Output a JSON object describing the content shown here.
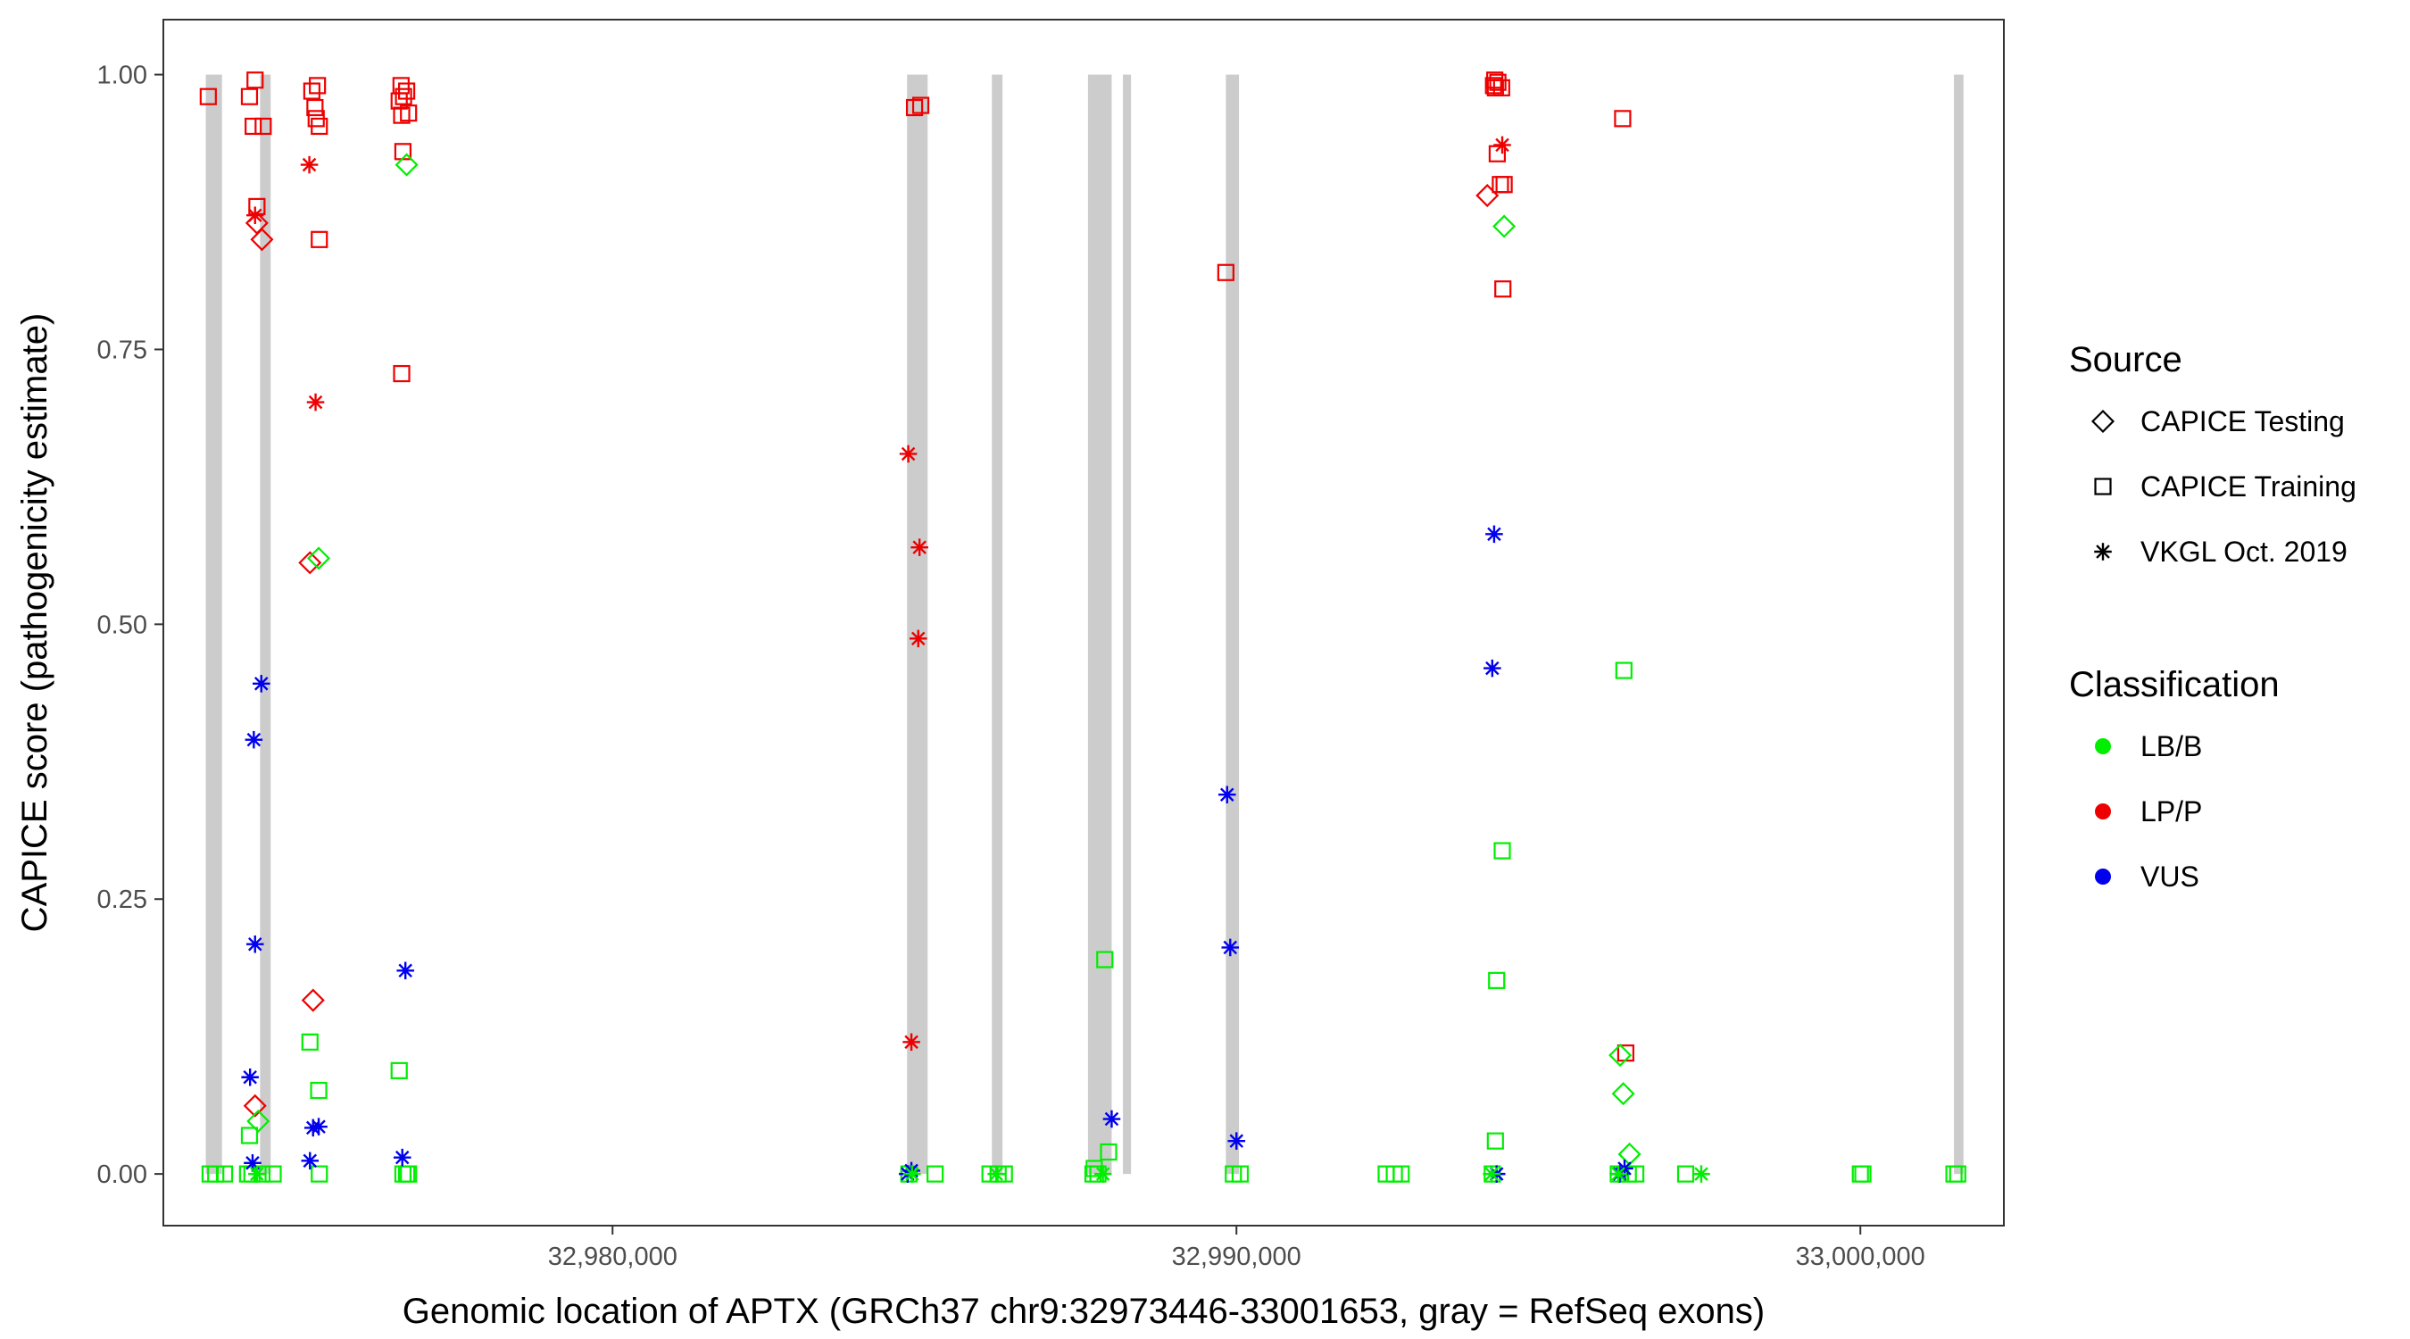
{
  "chart_data": {
    "type": "scatter",
    "xlabel": "Genomic location of APTX (GRCh37 chr9:32973446-33001653, gray = RefSeq exons)",
    "ylabel": "CAPICE score (pathogenicity estimate)",
    "xlim": [
      32972800,
      33002300
    ],
    "ylim": [
      -0.047,
      1.05
    ],
    "x_ticks": [
      32980000,
      32990000,
      33000000
    ],
    "x_tick_labels": [
      "32,980,000",
      "32,990,000",
      "33,000,000"
    ],
    "y_ticks": [
      0,
      0.25,
      0.5,
      0.75,
      1.0
    ],
    "y_tick_labels": [
      "0.00",
      "0.25",
      "0.50",
      "0.75",
      "1.00"
    ],
    "grid": false,
    "exons": [
      [
        32973480,
        32973740
      ],
      [
        32974350,
        32974520
      ],
      [
        32984720,
        32985050
      ],
      [
        32986080,
        32986250
      ],
      [
        32987620,
        32988000
      ],
      [
        32988180,
        32988310
      ],
      [
        32989830,
        32990040
      ],
      [
        33001500,
        33001653
      ]
    ],
    "colors": {
      "LB/B": "#00ee00",
      "LP/P": "#ee0000",
      "VUS": "#0000ee",
      "exon": "#cccccc"
    },
    "legend": {
      "source_title": "Source",
      "source_items": [
        {
          "label": "CAPICE Testing",
          "shape": "diamond"
        },
        {
          "label": "CAPICE Training",
          "shape": "square"
        },
        {
          "label": "VKGL Oct. 2019",
          "shape": "asterisk"
        }
      ],
      "class_title": "Classification",
      "class_items": [
        {
          "label": "LB/B",
          "color": "#00ee00"
        },
        {
          "label": "LP/P",
          "color": "#ee0000"
        },
        {
          "label": "VUS",
          "color": "#0000ee"
        }
      ],
      "position": "right"
    },
    "series": [
      {
        "name": "CAPICE Training LP/P",
        "shape": "square",
        "color": "#ee0000",
        "points": [
          [
            32973520,
            0.98
          ],
          [
            32974180,
            0.98
          ],
          [
            32974270,
            0.995
          ],
          [
            32974240,
            0.953
          ],
          [
            32974400,
            0.953
          ],
          [
            32974300,
            0.88
          ],
          [
            32975180,
            0.985
          ],
          [
            32975270,
            0.99
          ],
          [
            32975230,
            0.97
          ],
          [
            32975250,
            0.96
          ],
          [
            32975300,
            0.953
          ],
          [
            32975300,
            0.85
          ],
          [
            32976610,
            0.99
          ],
          [
            32976700,
            0.985
          ],
          [
            32976650,
            0.98
          ],
          [
            32976580,
            0.976
          ],
          [
            32976730,
            0.965
          ],
          [
            32976620,
            0.963
          ],
          [
            32976640,
            0.93
          ],
          [
            32976620,
            0.728
          ],
          [
            32984840,
            0.97
          ],
          [
            32984940,
            0.972
          ],
          [
            32989830,
            0.82
          ],
          [
            32994140,
            0.995
          ],
          [
            32994190,
            0.993
          ],
          [
            32994120,
            0.99
          ],
          [
            32994150,
            0.988
          ],
          [
            32994250,
            0.988
          ],
          [
            32994180,
            0.928
          ],
          [
            32994230,
            0.9
          ],
          [
            32994290,
            0.9
          ],
          [
            32994270,
            0.805
          ],
          [
            32996190,
            0.96
          ],
          [
            32996240,
            0.11
          ]
        ]
      },
      {
        "name": "CAPICE Training LB/B",
        "shape": "square",
        "color": "#00ee00",
        "points": [
          [
            32973550,
            0.0
          ],
          [
            32973640,
            0.0
          ],
          [
            32973780,
            0.0
          ],
          [
            32974150,
            0.0
          ],
          [
            32974220,
            0.0
          ],
          [
            32974380,
            0.0
          ],
          [
            32974560,
            0.0
          ],
          [
            32974180,
            0.035
          ],
          [
            32975150,
            0.12
          ],
          [
            32975290,
            0.076
          ],
          [
            32975300,
            0.0
          ],
          [
            32976580,
            0.094
          ],
          [
            32976640,
            0.0
          ],
          [
            32976700,
            0.0
          ],
          [
            32976730,
            0.0
          ],
          [
            32984750,
            0.0
          ],
          [
            32985170,
            0.0
          ],
          [
            32986050,
            0.0
          ],
          [
            32986180,
            0.0
          ],
          [
            32986280,
            0.0
          ],
          [
            32987700,
            0.0
          ],
          [
            32987780,
            0.0
          ],
          [
            32987950,
            0.02
          ],
          [
            32987890,
            0.195
          ],
          [
            32987720,
            0.005
          ],
          [
            32989950,
            0.0
          ],
          [
            32990060,
            0.0
          ],
          [
            32992400,
            0.0
          ],
          [
            32992530,
            0.0
          ],
          [
            32992640,
            0.0
          ],
          [
            32994100,
            0.0
          ],
          [
            32994150,
            0.03
          ],
          [
            32994170,
            0.176
          ],
          [
            32994260,
            0.294
          ],
          [
            32996210,
            0.458
          ],
          [
            32996280,
            0.0
          ],
          [
            32996400,
            0.0
          ],
          [
            32996120,
            0.0
          ],
          [
            32997200,
            0.0
          ],
          [
            33000000,
            0.0
          ],
          [
            33000040,
            0.0
          ],
          [
            33001500,
            0.0
          ],
          [
            33001560,
            0.0
          ]
        ]
      },
      {
        "name": "CAPICE Testing LP/P",
        "shape": "diamond",
        "color": "#ee0000",
        "points": [
          [
            32974300,
            0.865
          ],
          [
            32974380,
            0.85
          ],
          [
            32974270,
            0.062
          ],
          [
            32975150,
            0.556
          ],
          [
            32975200,
            0.158
          ],
          [
            32994020,
            0.89
          ]
        ]
      },
      {
        "name": "CAPICE Testing LB/B",
        "shape": "diamond",
        "color": "#00ee00",
        "points": [
          [
            32976700,
            0.918
          ],
          [
            32975290,
            0.56
          ],
          [
            32974320,
            0.048
          ],
          [
            32994290,
            0.862
          ],
          [
            32996150,
            0.108
          ],
          [
            32996200,
            0.073
          ],
          [
            32996300,
            0.018
          ]
        ]
      },
      {
        "name": "VKGL Oct. 2019 LP/P",
        "shape": "asterisk",
        "color": "#ee0000",
        "points": [
          [
            32974270,
            0.872
          ],
          [
            32975140,
            0.918
          ],
          [
            32975240,
            0.702
          ],
          [
            32984740,
            0.655
          ],
          [
            32984920,
            0.57
          ],
          [
            32984900,
            0.487
          ],
          [
            32984790,
            0.12
          ],
          [
            32994260,
            0.936
          ]
        ]
      },
      {
        "name": "VKGL Oct. 2019 VUS",
        "shape": "asterisk",
        "color": "#0000ee",
        "points": [
          [
            32974370,
            0.446
          ],
          [
            32974250,
            0.395
          ],
          [
            32974270,
            0.209
          ],
          [
            32974190,
            0.088
          ],
          [
            32974230,
            0.01
          ],
          [
            32975200,
            0.042
          ],
          [
            32975290,
            0.043
          ],
          [
            32975150,
            0.012
          ],
          [
            32976680,
            0.185
          ],
          [
            32976630,
            0.015
          ],
          [
            32984730,
            0.0
          ],
          [
            32984790,
            0.003
          ],
          [
            32988000,
            0.05
          ],
          [
            32989850,
            0.345
          ],
          [
            32989900,
            0.206
          ],
          [
            32990000,
            0.03
          ],
          [
            32994130,
            0.582
          ],
          [
            32994100,
            0.46
          ],
          [
            32994170,
            0.0
          ],
          [
            32996140,
            0.0
          ],
          [
            32996220,
            0.005
          ]
        ]
      },
      {
        "name": "VKGL Oct. 2019 LB/B",
        "shape": "asterisk",
        "color": "#00ee00",
        "points": [
          [
            32974300,
            0.0
          ],
          [
            32984800,
            0.0
          ],
          [
            32986150,
            0.0
          ],
          [
            32987860,
            0.0
          ],
          [
            32994090,
            0.0
          ],
          [
            32996120,
            0.0
          ],
          [
            32997450,
            0.0
          ]
        ]
      }
    ]
  }
}
